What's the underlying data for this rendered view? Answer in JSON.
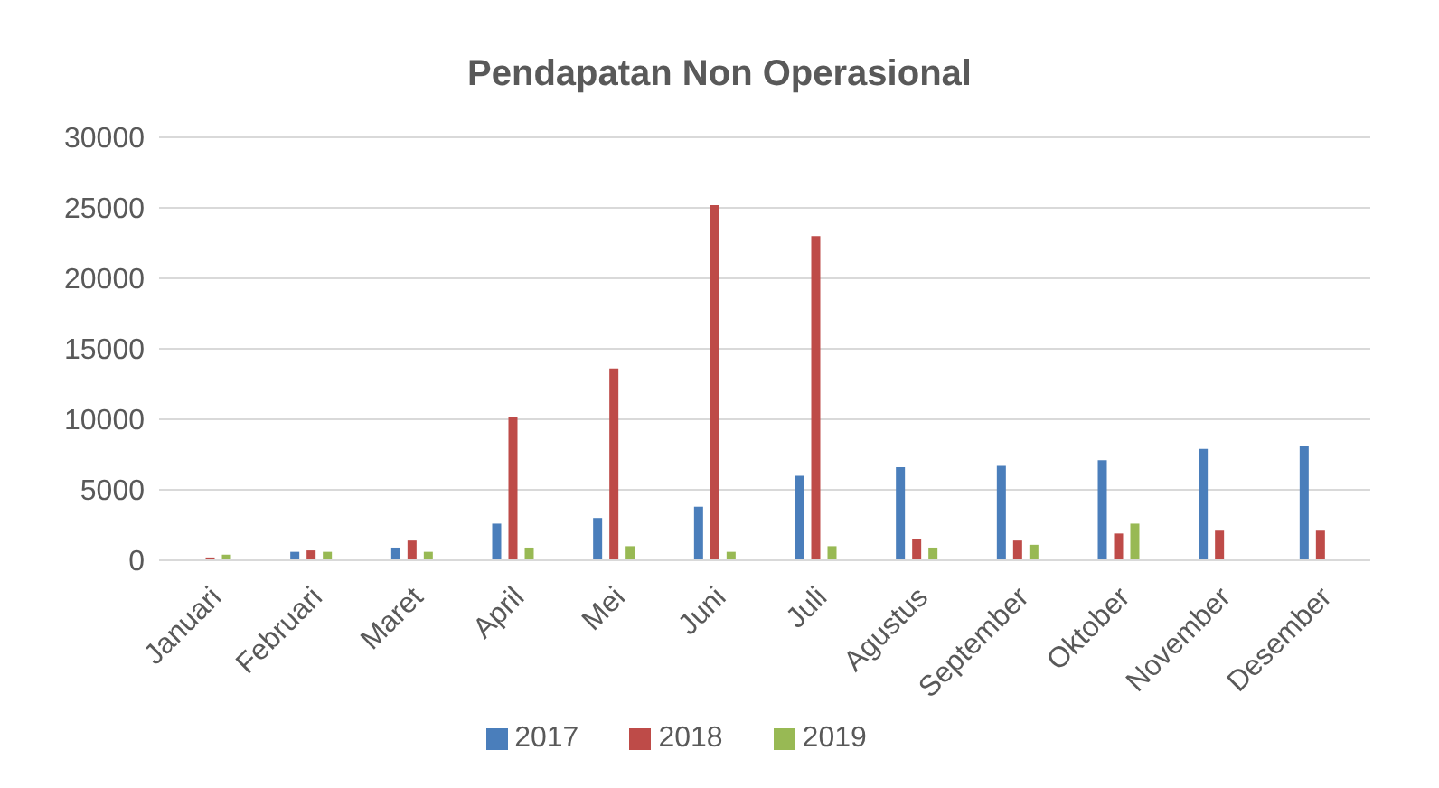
{
  "chart_data": {
    "type": "bar",
    "title": "Pendapatan Non Operasional",
    "categories": [
      "Januari",
      "Februari",
      "Maret",
      "April",
      "Mei",
      "Juni",
      "Juli",
      "Agustus",
      "September",
      "Oktober",
      "November",
      "Desember"
    ],
    "series": [
      {
        "name": "2017",
        "color": "#4a7ebb",
        "values": [
          0,
          600,
          900,
          2600,
          3000,
          3800,
          6000,
          6600,
          6700,
          7100,
          7900,
          8100
        ]
      },
      {
        "name": "2018",
        "color": "#be4b48",
        "values": [
          200,
          700,
          1400,
          10200,
          13600,
          25200,
          23000,
          1500,
          1400,
          1900,
          2100,
          2100
        ]
      },
      {
        "name": "2019",
        "color": "#98b954",
        "values": [
          400,
          600,
          600,
          900,
          1000,
          600,
          1000,
          900,
          1100,
          2600,
          null,
          null
        ]
      }
    ],
    "ylim": [
      0,
      30000
    ],
    "yticks": [
      0,
      5000,
      10000,
      15000,
      20000,
      25000,
      30000
    ],
    "grid": "y",
    "legend": "bottom"
  }
}
